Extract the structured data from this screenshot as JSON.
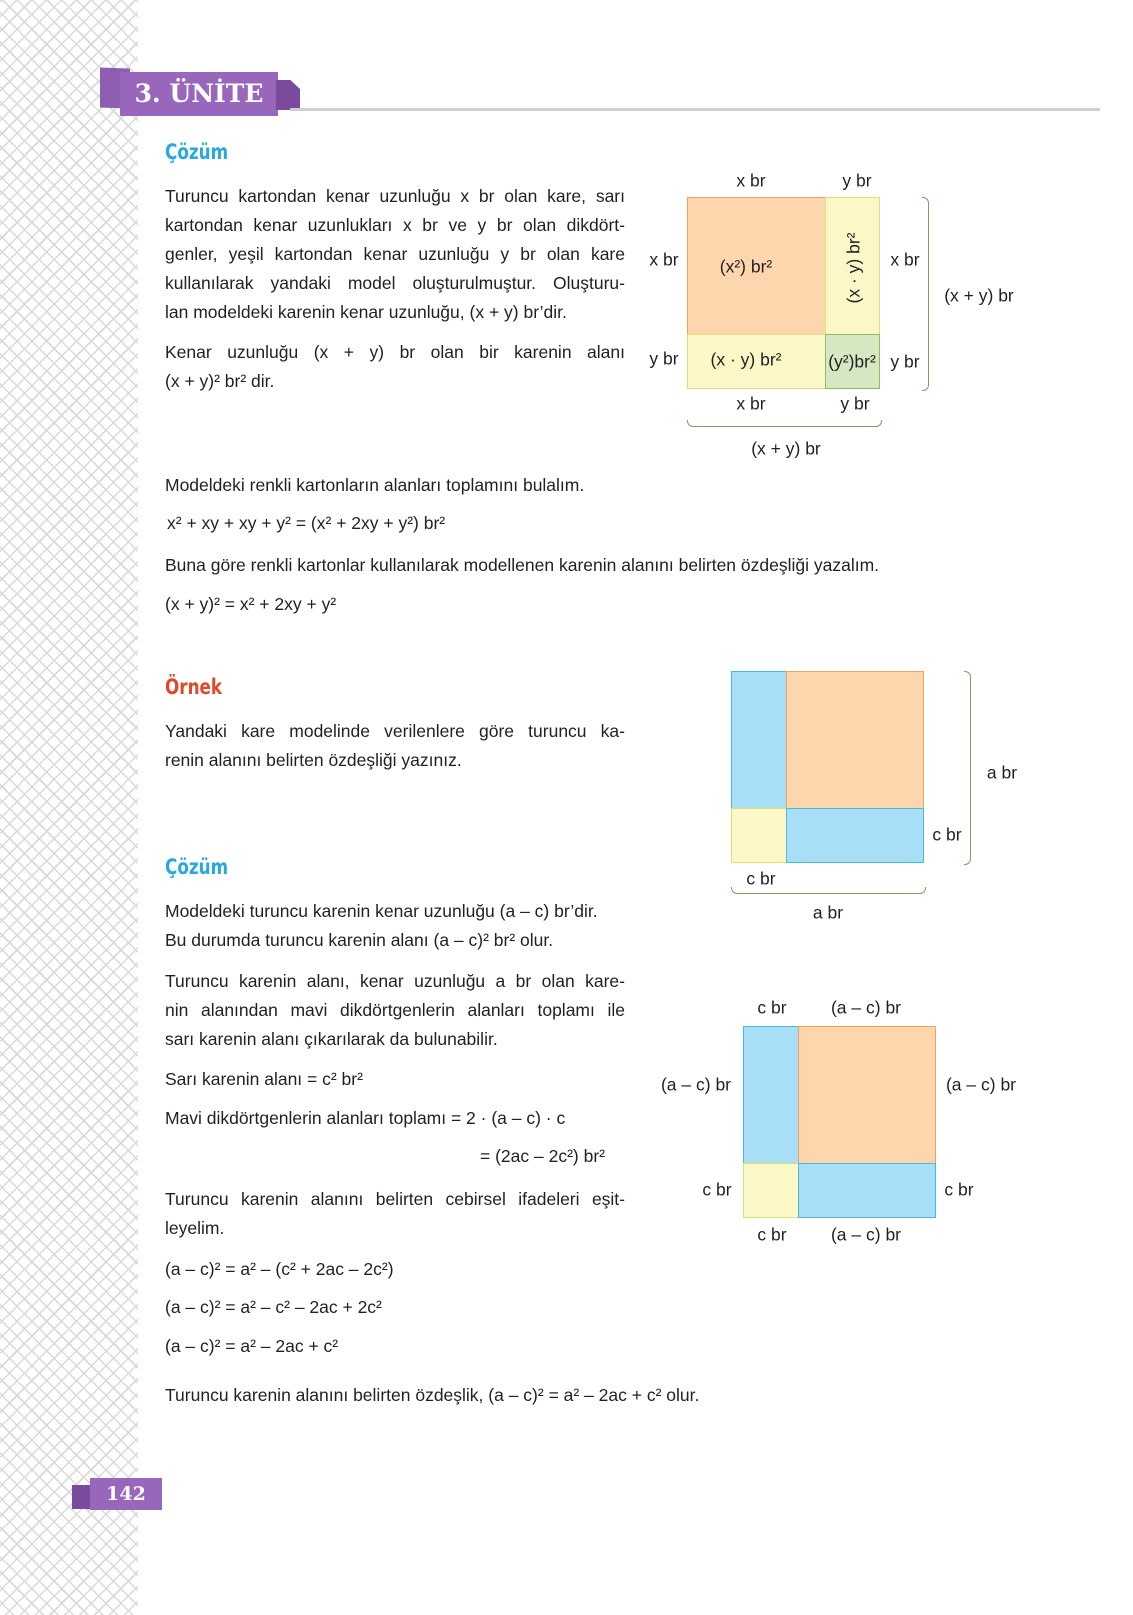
{
  "header": {
    "unit_label": "3. ÜNİTE"
  },
  "solution1": {
    "heading": "Çözüm",
    "lines": [
      "Turuncu kartondan kenar uzunluğu x br olan kare, sarı",
      "kartondan kenar uzunlukları x br ve y br olan dikdört-",
      "genler, yeşil kartondan kenar uzunluğu y br olan kare",
      "kullanılarak yandaki model oluşturulmuştur. Oluşturu-",
      "lan modeldeki karenin kenar uzunluğu, (x + y) br’dir."
    ],
    "lines2": [
      "Kenar uzunluğu (x + y) br olan bir karenin alanı",
      "(x + y)² br² dir."
    ],
    "sum_intro": "Modeldeki renkli kartonların alanları toplamını bulalım.",
    "sum_eq": "x² + xy + xy + y² = (x² + 2xy + y²) br²",
    "identity_intro": "Buna göre renkli kartonlar kullanılarak modellenen karenin alanını belirten özdeşliği yazalım.",
    "identity_eq": "(x + y)² = x² + 2xy + y²"
  },
  "diagram1": {
    "top": [
      "x br",
      "y br"
    ],
    "left": [
      "x br",
      "y br"
    ],
    "right": [
      "x br",
      "y br"
    ],
    "bottom": [
      "x br",
      "y br"
    ],
    "cells": [
      "(x²) br²",
      "(x · y) br²",
      "(x · y) br²",
      "(y²)br²"
    ],
    "brace_right": "(x + y) br",
    "brace_bottom": "(x + y) br"
  },
  "example": {
    "heading": "Örnek",
    "lines": [
      "Yandaki kare modelinde verilenlere göre turuncu ka-",
      "renin alanını belirten özdeşliği yazınız."
    ]
  },
  "diagram2": {
    "brace_right": "a br",
    "right": "c br",
    "bottom_left": "c br",
    "brace_bottom": "a br"
  },
  "solution2": {
    "heading": "Çözüm",
    "lines_a": [
      "Modeldeki turuncu karenin kenar uzunluğu (a – c) br’dir.",
      "Bu durumda turuncu karenin alanı (a – c)² br² olur."
    ],
    "lines_b": [
      "Turuncu karenin alanı, kenar uzunluğu a br olan kare-",
      "nin alanından mavi dikdörtgenlerin alanları toplamı ile",
      "sarı karenin alanı çıkarılarak da bulunabilir."
    ],
    "yellow_area": "Sarı karenin alanı = c² br²",
    "blue_area": "Mavi dikdörtgenlerin alanları toplamı = 2 · (a – c) · c",
    "blue_area2": "= (2ac – 2c²) br²",
    "lines_c": [
      "Turuncu karenin alanını belirten cebirsel ifadeleri eşit-",
      "leyelim."
    ],
    "eqs": [
      "(a – c)² = a² – (c² + 2ac – 2c²)",
      "(a – c)² = a² – c² – 2ac + 2c²",
      "(a – c)² = a² – 2ac + c²"
    ],
    "conclusion": "Turuncu karenin alanını belirten özdeşlik, (a – c)² = a² – 2ac + c² olur."
  },
  "diagram3": {
    "top": [
      "c br",
      "(a – c) br"
    ],
    "left": [
      "(a – c) br",
      "c br"
    ],
    "right": [
      "(a – c) br",
      "c br"
    ],
    "bottom": [
      "c br",
      "(a – c) br"
    ]
  },
  "footer": {
    "page_number": "142"
  },
  "colors": {
    "orange": "#fdd6ad",
    "yellow": "#fbf7c6",
    "green": "#d5e8c2",
    "blue": "#a9def7",
    "purple": "#9867bb",
    "heading_blue": "#29a8df",
    "heading_red": "#e1472d"
  }
}
